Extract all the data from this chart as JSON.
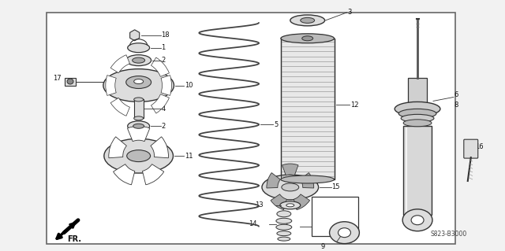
{
  "background_color": "#f2f2f2",
  "border_color": "#555555",
  "line_color": "#333333",
  "part_fill": "#dddddd",
  "fig_width": 6.4,
  "fig_height": 3.19,
  "dpi": 100,
  "watermark": "S823-B3000",
  "label_fs": 6.0
}
